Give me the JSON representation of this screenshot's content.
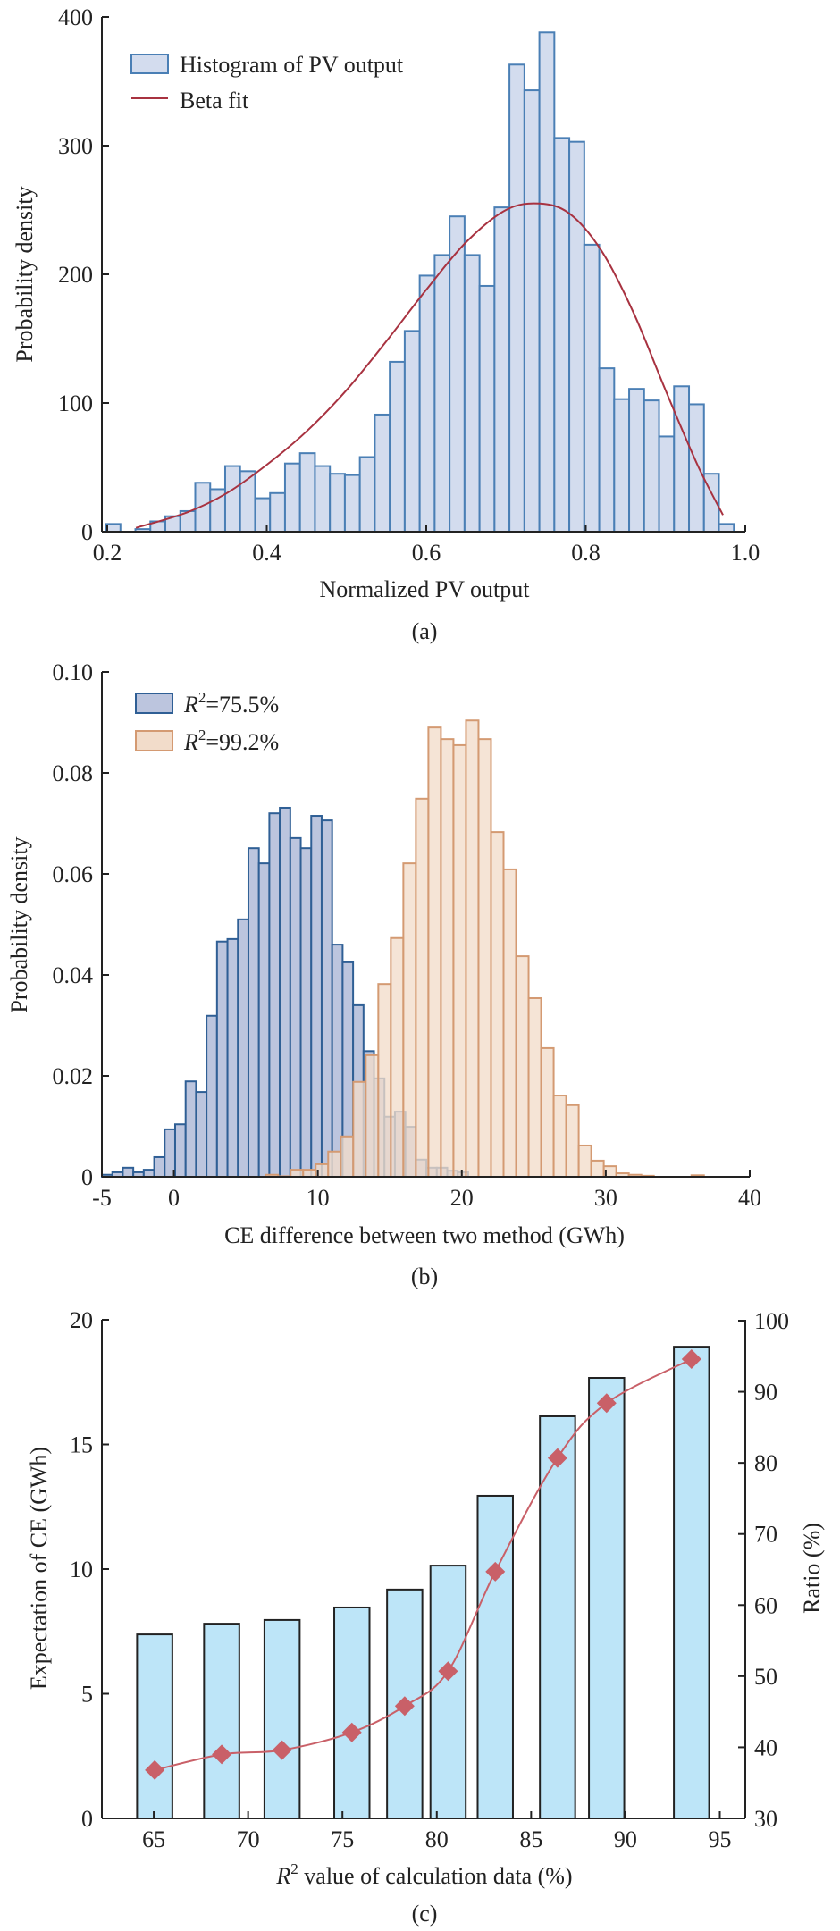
{
  "chart_data": [
    {
      "id": "a",
      "type": "bar",
      "subtype": "histogram",
      "caption": "(a)",
      "xlabel": "Normalized PV output",
      "ylabel": "Probability density",
      "xlim": [
        0.193,
        1.0
      ],
      "ylim": [
        0,
        400
      ],
      "xticks": [
        0.2,
        0.4,
        0.6,
        0.8,
        1.0
      ],
      "xtick_labels": [
        "0.2",
        "0.4",
        "0.6",
        "0.8",
        "1.0"
      ],
      "yticks": [
        0,
        100,
        200,
        300,
        400
      ],
      "ytick_labels": [
        "0",
        "100",
        "200",
        "300",
        "400"
      ],
      "grid": false,
      "legend_position": "top-left",
      "colors": {
        "hist_fill": "#d3dcee",
        "hist_edge": "#4a7fb5",
        "fit_line": "#a83240"
      },
      "legend": [
        {
          "label": "Histogram of PV output",
          "kind": "patch"
        },
        {
          "label": "Beta fit",
          "kind": "line"
        }
      ],
      "histogram": {
        "name": "Histogram of PV output",
        "bin_start": 0.1978,
        "bin_width": 0.01876,
        "counts": [
          6,
          0,
          2,
          8,
          12,
          16,
          38,
          33,
          51,
          47,
          26,
          30,
          53,
          61,
          51,
          45,
          44,
          58,
          91,
          132,
          156,
          199,
          215,
          245,
          215,
          191,
          252,
          363,
          343,
          388,
          306,
          303,
          223,
          127,
          103,
          111,
          102,
          74,
          113,
          99,
          45,
          6
        ]
      },
      "fit": {
        "name": "Beta fit",
        "x": [
          0.236,
          0.3,
          0.35,
          0.4,
          0.45,
          0.5,
          0.55,
          0.6,
          0.65,
          0.7,
          0.742,
          0.78,
          0.82,
          0.86,
          0.9,
          0.94,
          0.972
        ],
        "y": [
          3,
          15,
          30,
          52,
          78,
          110,
          148,
          188,
          225,
          250,
          255,
          247,
          218,
          170,
          110,
          52,
          13
        ]
      }
    },
    {
      "id": "b",
      "type": "bar",
      "subtype": "histogram",
      "caption": "(b)",
      "xlabel": "CE difference between two method (GWh)",
      "ylabel": "Probability density",
      "xlim": [
        -5,
        40
      ],
      "ylim": [
        0,
        0.1
      ],
      "xticks": [
        -5,
        0,
        10,
        20,
        30,
        40
      ],
      "xtick_labels": [
        "-5",
        "0",
        "10",
        "20",
        "30",
        "40"
      ],
      "yticks": [
        0,
        0.02,
        0.04,
        0.06,
        0.08,
        0.1
      ],
      "ytick_labels": [
        "0",
        "0.02",
        "0.04",
        "0.06",
        "0.08",
        "0.10"
      ],
      "grid": false,
      "legend_position": "top-left",
      "series": [
        {
          "name": "R2=75.5%",
          "legend_prefix": "R",
          "legend_sup": "2",
          "legend_suffix": "=75.5%",
          "fill": "#bcc5de",
          "edge": "#2f5f95",
          "bin_start": -5.0,
          "bin_width": 0.727,
          "values": [
            0.0004,
            0.0009,
            0.0018,
            0.0009,
            0.0014,
            0.0039,
            0.0094,
            0.0104,
            0.0189,
            0.0168,
            0.0319,
            0.0466,
            0.0471,
            0.051,
            0.0651,
            0.0621,
            0.072,
            0.0731,
            0.0671,
            0.0651,
            0.0715,
            0.0706,
            0.046,
            0.0425,
            0.034,
            0.0249,
            0.0195,
            0.0119,
            0.0129,
            0.0099,
            0.0034,
            0.0018,
            0.0018,
            0.0012,
            0.0009
          ]
        },
        {
          "name": "R2=99.2%",
          "legend_prefix": "R",
          "legend_sup": "2",
          "legend_suffix": "=99.2%",
          "fill": "#f2dcca",
          "edge": "#d49a72",
          "bin_start": 6.37,
          "bin_width": 0.87,
          "values": [
            0.0004,
            0.0001,
            0.0014,
            0.0014,
            0.0025,
            0.005,
            0.008,
            0.0188,
            0.0241,
            0.0382,
            0.0473,
            0.0621,
            0.0749,
            0.089,
            0.0867,
            0.0855,
            0.0904,
            0.0867,
            0.0683,
            0.0609,
            0.0437,
            0.0354,
            0.0255,
            0.0161,
            0.0142,
            0.0062,
            0.0032,
            0.0021,
            0.0007,
            0.0004,
            0.0002,
            0,
            0,
            0,
            0.0003
          ]
        }
      ]
    },
    {
      "id": "c",
      "type": "bar",
      "subtype": "bar-with-line-dual-axis",
      "caption": "(c)",
      "xlabel_prefix": "R",
      "xlabel_sup": "2",
      "xlabel_suffix": " value of calculation data (%)",
      "ylabel": "Expectation of CE (GWh)",
      "ylabel_right": "Ratio (%)",
      "xlim": [
        62.25,
        96.35
      ],
      "ylim": [
        0,
        20
      ],
      "ylim_right": [
        30,
        100
      ],
      "xticks": [
        65,
        70,
        75,
        80,
        85,
        90,
        95
      ],
      "xtick_labels": [
        "65",
        "70",
        "75",
        "80",
        "85",
        "90",
        "95"
      ],
      "yticks": [
        0,
        5,
        10,
        15,
        20
      ],
      "ytick_labels": [
        "0",
        "5",
        "10",
        "15",
        "20"
      ],
      "yticks_right": [
        30,
        40,
        50,
        60,
        70,
        80,
        90,
        100
      ],
      "ytick_labels_right": [
        "30",
        "40",
        "50",
        "60",
        "70",
        "80",
        "90",
        "100"
      ],
      "grid": false,
      "colors": {
        "bar_fill": "#bde5f8",
        "bar_edge": "#222222",
        "line": "#c96068",
        "marker": "#c96068"
      },
      "bar_width": 1.87,
      "x": [
        65.05,
        68.6,
        71.8,
        75.5,
        78.3,
        80.6,
        83.1,
        86.4,
        89.0,
        93.5
      ],
      "series": [
        {
          "name": "Expectation of CE",
          "axis": "left",
          "type": "bar",
          "values": [
            7.38,
            7.81,
            7.96,
            8.46,
            9.18,
            10.14,
            12.94,
            16.13,
            17.67,
            18.92
          ]
        },
        {
          "name": "Ratio",
          "axis": "right",
          "type": "line",
          "marker": "diamond",
          "values": [
            36.8,
            39.0,
            39.6,
            42.1,
            45.8,
            50.7,
            64.7,
            80.7,
            88.4,
            94.6
          ]
        }
      ]
    }
  ]
}
